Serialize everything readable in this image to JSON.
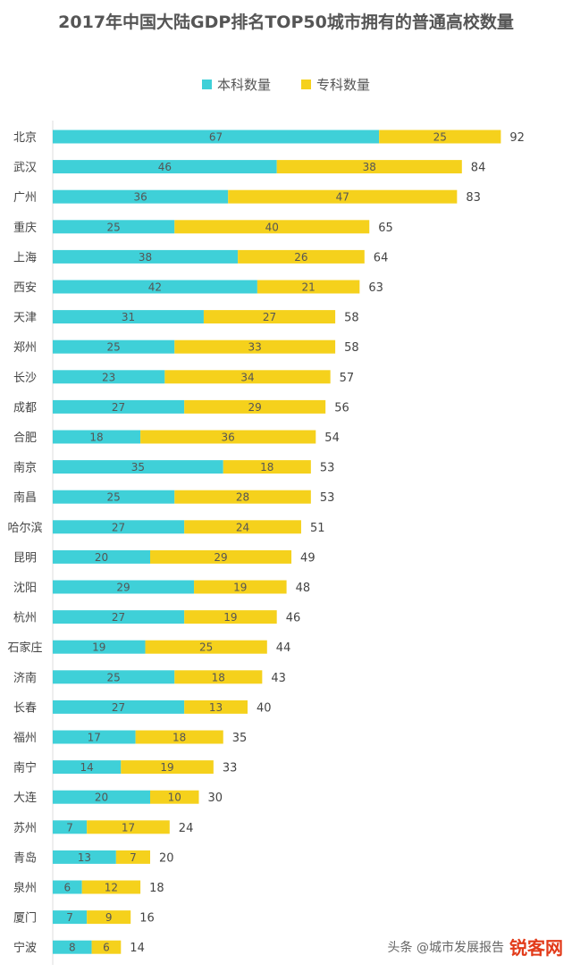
{
  "chart_data": {
    "type": "bar",
    "orientation": "horizontal",
    "stacked": true,
    "title": "2017年中国大陆GDP排名TOP50城市拥有的普通高校数量",
    "categories": [
      "北京",
      "武汉",
      "广州",
      "重庆",
      "上海",
      "西安",
      "天津",
      "郑州",
      "长沙",
      "成都",
      "合肥",
      "南京",
      "南昌",
      "哈尔滨",
      "昆明",
      "沈阳",
      "杭州",
      "石家庄",
      "济南",
      "长春",
      "福州",
      "南宁",
      "大连",
      "苏州",
      "青岛",
      "泉州",
      "厦门",
      "宁波"
    ],
    "series": [
      {
        "name": "本科数量",
        "color": "#3fd0d8",
        "values": [
          67,
          46,
          36,
          25,
          38,
          42,
          31,
          25,
          23,
          27,
          18,
          35,
          25,
          27,
          20,
          29,
          27,
          19,
          25,
          27,
          17,
          14,
          20,
          7,
          13,
          6,
          7,
          8
        ]
      },
      {
        "name": "专科数量",
        "color": "#f5d11c",
        "values": [
          25,
          38,
          47,
          40,
          26,
          21,
          27,
          33,
          34,
          29,
          36,
          18,
          28,
          24,
          29,
          19,
          19,
          25,
          18,
          13,
          18,
          19,
          10,
          17,
          7,
          12,
          9,
          6
        ]
      }
    ],
    "totals": [
      92,
      84,
      83,
      65,
      64,
      63,
      58,
      58,
      57,
      56,
      54,
      53,
      53,
      51,
      49,
      48,
      46,
      44,
      43,
      40,
      35,
      33,
      30,
      24,
      20,
      18,
      16,
      14
    ],
    "legend_position": "top-center",
    "grid": false
  },
  "legend": {
    "undergrad_label": "本科数量",
    "junior_label": "专科数量"
  },
  "watermark": {
    "text": "头条 @城市发展报告",
    "logo_text": "锐客网"
  }
}
